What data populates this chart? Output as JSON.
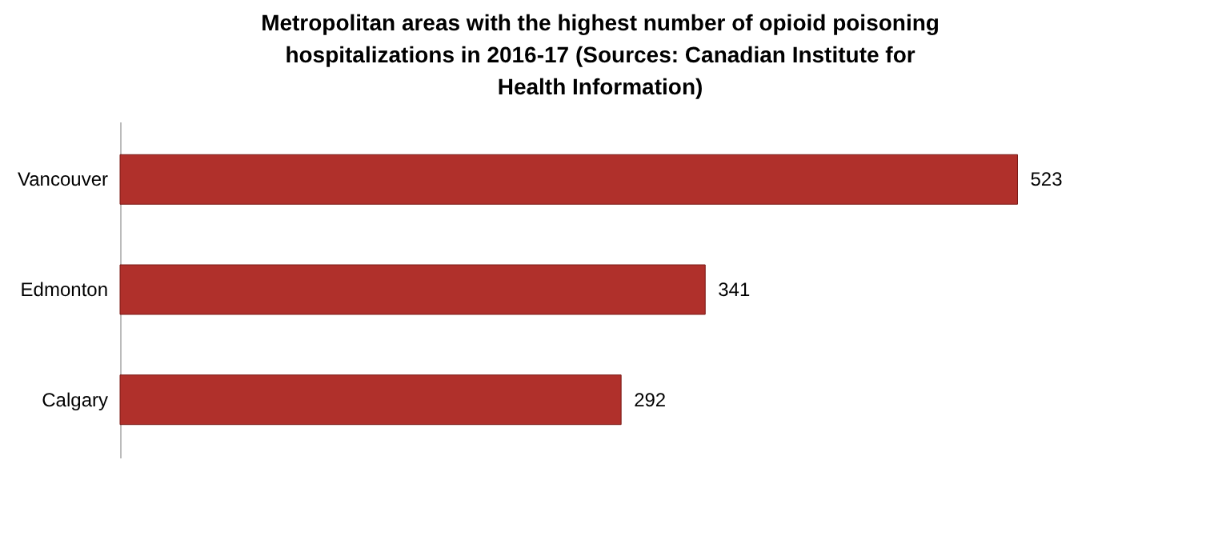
{
  "chart_data": {
    "type": "bar",
    "orientation": "horizontal",
    "title": "Metropolitan areas with the highest number of opioid poisoning hospitalizations in 2016-17 (Sources: Canadian Institute for Health Information)",
    "categories": [
      "Vancouver",
      "Edmonton",
      "Calgary"
    ],
    "values": [
      523,
      341,
      292
    ],
    "color": "#b0302b",
    "data_labels": true,
    "tick_labels": "y"
  }
}
